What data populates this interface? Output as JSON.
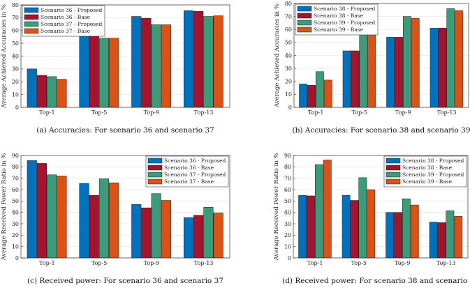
{
  "chart_data": [
    {
      "type": "bar",
      "caption": "(a) Accuracies: For scenario 36 and scenario 37",
      "ylabel": "Average Achieved Accuracies in %",
      "xlabel": "",
      "categories": [
        "Top-1",
        "Top-5",
        "Top-9",
        "Top-13"
      ],
      "ylim": [
        0,
        80
      ],
      "yticks": [
        0,
        10,
        20,
        30,
        40,
        50,
        60,
        70,
        80
      ],
      "grid": true,
      "legend": "top-left",
      "series": [
        {
          "name": "Scenario 36 - Proposed",
          "color": "#0072BD",
          "values": [
            30,
            62,
            71,
            75.5
          ]
        },
        {
          "name": "Scenario 36 - Base",
          "color": "#A2142F",
          "values": [
            25,
            59.5,
            69.5,
            75
          ]
        },
        {
          "name": "Scenario 37 - Proposed",
          "color": "#3C9B79",
          "values": [
            24,
            54,
            64.5,
            71
          ]
        },
        {
          "name": "Scenario 37 - Base",
          "color": "#D95319",
          "values": [
            22,
            54,
            64.5,
            71.5
          ]
        }
      ]
    },
    {
      "type": "bar",
      "caption": "(b) Accuracies: For scenario 38 and scenario 39",
      "ylabel": "Average Achieved Accuracies in %",
      "xlabel": "",
      "categories": [
        "Top-1",
        "Top-5",
        "Top-9",
        "Top-13"
      ],
      "ylim": [
        0,
        80
      ],
      "yticks": [
        0,
        10,
        20,
        30,
        40,
        50,
        60,
        70,
        80
      ],
      "grid": true,
      "legend": "top-left",
      "series": [
        {
          "name": "Scenario 38 - Proposed",
          "color": "#0072BD",
          "values": [
            18,
            43.5,
            54,
            61
          ]
        },
        {
          "name": "Scenario 38 - Base",
          "color": "#A2142F",
          "values": [
            17,
            43.5,
            54,
            61
          ]
        },
        {
          "name": "Scenario 39 - Proposed",
          "color": "#3C9B79",
          "values": [
            27.5,
            62.5,
            70,
            76
          ]
        },
        {
          "name": "Scenario 39 - Base",
          "color": "#D95319",
          "values": [
            21,
            57,
            68.5,
            74.5
          ]
        }
      ]
    },
    {
      "type": "bar",
      "caption": "(c) Received power: For scenario 36 and scenario 37",
      "ylabel": "Average Received Power Ratio in %",
      "xlabel": "",
      "categories": [
        "Top-1",
        "Top-5",
        "Top-9",
        "Top-13"
      ],
      "ylim": [
        0,
        90
      ],
      "yticks": [
        0,
        10,
        20,
        30,
        40,
        50,
        60,
        70,
        80,
        90
      ],
      "grid": true,
      "legend": "top-right",
      "series": [
        {
          "name": "Scenario 36 - Proposed",
          "color": "#0072BD",
          "values": [
            85.5,
            65.5,
            47,
            35.5
          ]
        },
        {
          "name": "Scenario 36 - Base",
          "color": "#A2142F",
          "values": [
            83,
            55,
            44,
            37.5
          ]
        },
        {
          "name": "Scenario 37 - Proposed",
          "color": "#3C9B79",
          "values": [
            73,
            69.5,
            56.5,
            44.5
          ]
        },
        {
          "name": "Scenario 37 - Base",
          "color": "#D95319",
          "values": [
            72,
            66,
            50.5,
            39.5
          ]
        }
      ]
    },
    {
      "type": "bar",
      "caption": "(d) Received power: For scenario 38 and scenario 39",
      "ylabel": "Average Received Power Ratio in %",
      "xlabel": "",
      "categories": [
        "Top-1",
        "Top-5",
        "Top-9",
        "Top-13"
      ],
      "ylim": [
        0,
        90
      ],
      "yticks": [
        0,
        10,
        20,
        30,
        40,
        50,
        60,
        70,
        80,
        90
      ],
      "grid": true,
      "legend": "top-right",
      "series": [
        {
          "name": "Scenario 38 - Proposed",
          "color": "#0072BD",
          "values": [
            55,
            55,
            40,
            31.5
          ]
        },
        {
          "name": "Scenario 38 - Base",
          "color": "#A2142F",
          "values": [
            54.5,
            50.5,
            40,
            31
          ]
        },
        {
          "name": "Scenario 39 - Proposed",
          "color": "#3C9B79",
          "values": [
            82,
            70.5,
            52,
            41.5
          ]
        },
        {
          "name": "Scenario 39 - Base",
          "color": "#D95319",
          "values": [
            86,
            60,
            46.5,
            36.5
          ]
        }
      ]
    }
  ]
}
